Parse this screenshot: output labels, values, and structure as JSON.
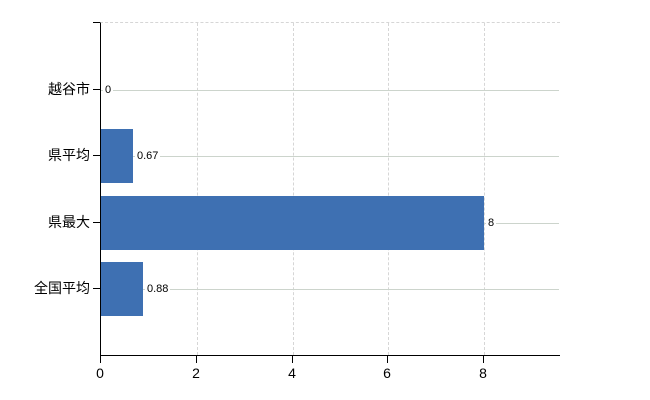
{
  "chart_data": {
    "type": "bar",
    "orientation": "horizontal",
    "title": "",
    "xlabel": "",
    "ylabel": "",
    "categories": [
      "越谷市",
      "県平均",
      "県最大",
      "全国平均"
    ],
    "values": [
      0,
      0.67,
      8,
      0.88
    ],
    "value_labels": [
      "0",
      "0.67",
      "8",
      "0.88"
    ],
    "x_ticks": [
      0,
      2,
      4,
      6,
      8
    ],
    "x_tick_labels": [
      "0",
      "2",
      "4",
      "6",
      "8"
    ],
    "xlim": [
      0,
      9.58
    ],
    "legend": "none",
    "grid": {
      "vertical": "dashed",
      "horizontal": "solid"
    },
    "colors": {
      "bar": "#3e70b2",
      "horizontal_grid": "#ccd4cc",
      "vertical_grid": "#d6d6d6",
      "axis": "#000000",
      "text": "#000000",
      "background": "#ffffff"
    }
  }
}
